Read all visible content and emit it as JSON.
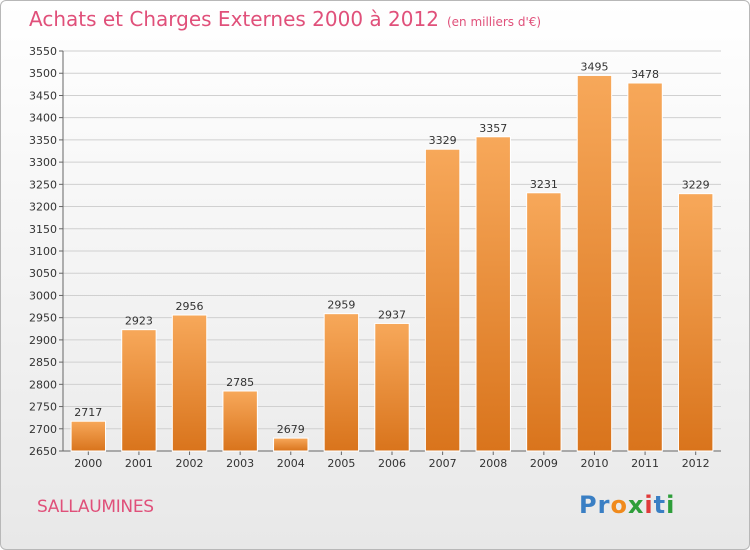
{
  "header": {
    "title": "Achats et Charges Externes 2000 à 2012",
    "unit": "(en milliers d'€)"
  },
  "footer": {
    "city": "SALLAUMINES",
    "logo_letters": [
      {
        "ch": "P",
        "color": "#3a7fc4"
      },
      {
        "ch": "r",
        "color": "#3a7fc4"
      },
      {
        "ch": "o",
        "color": "#f08a1c"
      },
      {
        "ch": "x",
        "color": "#2e9e3a"
      },
      {
        "ch": "i",
        "color": "#e03a3a"
      },
      {
        "ch": "t",
        "color": "#3a7fc4"
      },
      {
        "ch": "i",
        "color": "#2e9e3a"
      }
    ]
  },
  "colors": {
    "title": "#e0507a",
    "bar_top": "#f7a85a",
    "bar_bottom": "#d9741c",
    "grid": "#d0d0d0"
  },
  "chart_data": {
    "type": "bar",
    "title": "Achats et Charges Externes 2000 à 2012",
    "subtitle": "(en milliers d'€)",
    "categories": [
      "2000",
      "2001",
      "2002",
      "2003",
      "2004",
      "2005",
      "2006",
      "2007",
      "2008",
      "2009",
      "2010",
      "2011",
      "2012"
    ],
    "values": [
      2717,
      2923,
      2956,
      2785,
      2679,
      2959,
      2937,
      3329,
      3357,
      3231,
      3495,
      3478,
      3229
    ],
    "ylim": [
      2650,
      3550
    ],
    "ytick_step": 50,
    "grid": true,
    "data_labels": true
  }
}
